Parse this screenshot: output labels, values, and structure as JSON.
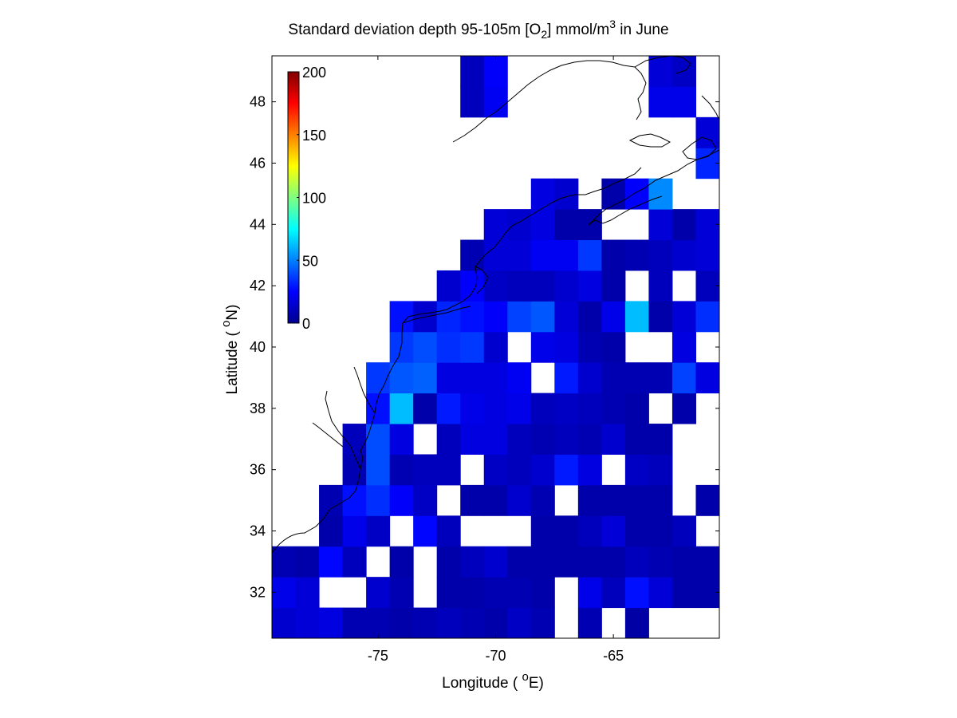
{
  "title": {
    "prefix": "Standard deviation depth 95-105m [O",
    "subscript": "2",
    "middle": "] mmol/m",
    "superscript": "3",
    "suffix": " in June"
  },
  "axes": {
    "xlabel_prefix": "Longitude ( ",
    "xlabel_degree": "o",
    "xlabel_suffix": "E)",
    "ylabel_prefix": "Latitude ( ",
    "ylabel_degree": "o",
    "ylabel_suffix": "N)"
  },
  "chart_data": {
    "type": "heatmap",
    "xlim": [
      -79.5,
      -60.5
    ],
    "ylim": [
      30.5,
      49.5
    ],
    "x_ticks": [
      -75,
      -70,
      -65
    ],
    "x_tick_labels": [
      "-75",
      "-70",
      "-65"
    ],
    "y_ticks": [
      32,
      34,
      36,
      38,
      40,
      42,
      44,
      46,
      48
    ],
    "y_tick_labels": [
      "32",
      "34",
      "36",
      "38",
      "40",
      "42",
      "44",
      "46",
      "48"
    ],
    "cell_size_degrees": 1,
    "colormap": "jet",
    "colorbar": {
      "range": [
        0,
        200
      ],
      "ticks": [
        0,
        50,
        100,
        150,
        200
      ],
      "tick_labels": [
        "0",
        "50",
        "100",
        "150",
        "200"
      ],
      "placement": "upper-left inside axes"
    },
    "grid": false,
    "cells": [
      {
        "lon": -79,
        "lat": 31,
        "v": 14
      },
      {
        "lon": -78,
        "lat": 31,
        "v": 16
      },
      {
        "lon": -77,
        "lat": 31,
        "v": 18
      },
      {
        "lon": -76,
        "lat": 31,
        "v": 8
      },
      {
        "lon": -75,
        "lat": 31,
        "v": 8
      },
      {
        "lon": -74,
        "lat": 31,
        "v": 6
      },
      {
        "lon": -73,
        "lat": 31,
        "v": 8
      },
      {
        "lon": -72,
        "lat": 31,
        "v": 10
      },
      {
        "lon": -71,
        "lat": 31,
        "v": 8
      },
      {
        "lon": -70,
        "lat": 31,
        "v": 6
      },
      {
        "lon": -69,
        "lat": 31,
        "v": 12
      },
      {
        "lon": -68,
        "lat": 31,
        "v": 8
      },
      {
        "lon": -66,
        "lat": 31,
        "v": 8
      },
      {
        "lon": -64,
        "lat": 31,
        "v": 5
      },
      {
        "lon": -79,
        "lat": 32,
        "v": 20
      },
      {
        "lon": -78,
        "lat": 32,
        "v": 16
      },
      {
        "lon": -75,
        "lat": 32,
        "v": 14
      },
      {
        "lon": -74,
        "lat": 32,
        "v": 8
      },
      {
        "lon": -72,
        "lat": 32,
        "v": 6
      },
      {
        "lon": -71,
        "lat": 32,
        "v": 6
      },
      {
        "lon": -70,
        "lat": 32,
        "v": 8
      },
      {
        "lon": -69,
        "lat": 32,
        "v": 8
      },
      {
        "lon": -68,
        "lat": 32,
        "v": 6
      },
      {
        "lon": -66,
        "lat": 32,
        "v": 20
      },
      {
        "lon": -65,
        "lat": 32,
        "v": 10
      },
      {
        "lon": -64,
        "lat": 32,
        "v": 28
      },
      {
        "lon": -63,
        "lat": 32,
        "v": 16
      },
      {
        "lon": -62,
        "lat": 32,
        "v": 6
      },
      {
        "lon": -61,
        "lat": 32,
        "v": 6
      },
      {
        "lon": -79,
        "lat": 33,
        "v": 8
      },
      {
        "lon": -78,
        "lat": 33,
        "v": 6
      },
      {
        "lon": -77,
        "lat": 33,
        "v": 26
      },
      {
        "lon": -76,
        "lat": 33,
        "v": 10
      },
      {
        "lon": -74,
        "lat": 33,
        "v": 6
      },
      {
        "lon": -72,
        "lat": 33,
        "v": 6
      },
      {
        "lon": -71,
        "lat": 33,
        "v": 10
      },
      {
        "lon": -70,
        "lat": 33,
        "v": 14
      },
      {
        "lon": -69,
        "lat": 33,
        "v": 6
      },
      {
        "lon": -68,
        "lat": 33,
        "v": 6
      },
      {
        "lon": -67,
        "lat": 33,
        "v": 6
      },
      {
        "lon": -66,
        "lat": 33,
        "v": 6
      },
      {
        "lon": -65,
        "lat": 33,
        "v": 6
      },
      {
        "lon": -64,
        "lat": 33,
        "v": 10
      },
      {
        "lon": -63,
        "lat": 33,
        "v": 8
      },
      {
        "lon": -62,
        "lat": 33,
        "v": 6
      },
      {
        "lon": -61,
        "lat": 33,
        "v": 6
      },
      {
        "lon": -77,
        "lat": 34,
        "v": 6
      },
      {
        "lon": -76,
        "lat": 34,
        "v": 20
      },
      {
        "lon": -75,
        "lat": 34,
        "v": 12
      },
      {
        "lon": -73,
        "lat": 34,
        "v": 26
      },
      {
        "lon": -72,
        "lat": 34,
        "v": 10
      },
      {
        "lon": -68,
        "lat": 34,
        "v": 6
      },
      {
        "lon": -67,
        "lat": 34,
        "v": 6
      },
      {
        "lon": -66,
        "lat": 34,
        "v": 10
      },
      {
        "lon": -65,
        "lat": 34,
        "v": 16
      },
      {
        "lon": -64,
        "lat": 34,
        "v": 6
      },
      {
        "lon": -63,
        "lat": 34,
        "v": 6
      },
      {
        "lon": -62,
        "lat": 34,
        "v": 10
      },
      {
        "lon": -77,
        "lat": 35,
        "v": 8
      },
      {
        "lon": -76,
        "lat": 35,
        "v": 28
      },
      {
        "lon": -75,
        "lat": 35,
        "v": 34
      },
      {
        "lon": -74,
        "lat": 35,
        "v": 24
      },
      {
        "lon": -73,
        "lat": 35,
        "v": 12
      },
      {
        "lon": -71,
        "lat": 35,
        "v": 6
      },
      {
        "lon": -70,
        "lat": 35,
        "v": 6
      },
      {
        "lon": -69,
        "lat": 35,
        "v": 14
      },
      {
        "lon": -68,
        "lat": 35,
        "v": 8
      },
      {
        "lon": -66,
        "lat": 35,
        "v": 6
      },
      {
        "lon": -65,
        "lat": 35,
        "v": 6
      },
      {
        "lon": -64,
        "lat": 35,
        "v": 6
      },
      {
        "lon": -63,
        "lat": 35,
        "v": 6
      },
      {
        "lon": -61,
        "lat": 35,
        "v": 6
      },
      {
        "lon": -60,
        "lat": 35,
        "v": 6
      },
      {
        "lon": -76,
        "lat": 36,
        "v": 8
      },
      {
        "lon": -75,
        "lat": 36,
        "v": 40
      },
      {
        "lon": -74,
        "lat": 36,
        "v": 8
      },
      {
        "lon": -73,
        "lat": 36,
        "v": 10
      },
      {
        "lon": -72,
        "lat": 36,
        "v": 10
      },
      {
        "lon": -70,
        "lat": 36,
        "v": 12
      },
      {
        "lon": -69,
        "lat": 36,
        "v": 10
      },
      {
        "lon": -68,
        "lat": 36,
        "v": 14
      },
      {
        "lon": -67,
        "lat": 36,
        "v": 30
      },
      {
        "lon": -66,
        "lat": 36,
        "v": 18
      },
      {
        "lon": -64,
        "lat": 36,
        "v": 12
      },
      {
        "lon": -63,
        "lat": 36,
        "v": 10
      },
      {
        "lon": -60,
        "lat": 36,
        "v": 6
      },
      {
        "lon": -76,
        "lat": 37,
        "v": 10
      },
      {
        "lon": -75,
        "lat": 37,
        "v": 40
      },
      {
        "lon": -74,
        "lat": 37,
        "v": 18
      },
      {
        "lon": -72,
        "lat": 37,
        "v": 10
      },
      {
        "lon": -71,
        "lat": 37,
        "v": 18
      },
      {
        "lon": -70,
        "lat": 37,
        "v": 18
      },
      {
        "lon": -69,
        "lat": 37,
        "v": 10
      },
      {
        "lon": -68,
        "lat": 37,
        "v": 8
      },
      {
        "lon": -67,
        "lat": 37,
        "v": 10
      },
      {
        "lon": -66,
        "lat": 37,
        "v": 8
      },
      {
        "lon": -65,
        "lat": 37,
        "v": 14
      },
      {
        "lon": -64,
        "lat": 37,
        "v": 6
      },
      {
        "lon": -63,
        "lat": 37,
        "v": 6
      },
      {
        "lon": -75,
        "lat": 38,
        "v": 28
      },
      {
        "lon": -74,
        "lat": 38,
        "v": 62
      },
      {
        "lon": -73,
        "lat": 38,
        "v": 6
      },
      {
        "lon": -72,
        "lat": 38,
        "v": 30
      },
      {
        "lon": -71,
        "lat": 38,
        "v": 20
      },
      {
        "lon": -70,
        "lat": 38,
        "v": 18
      },
      {
        "lon": -69,
        "lat": 38,
        "v": 20
      },
      {
        "lon": -68,
        "lat": 38,
        "v": 10
      },
      {
        "lon": -67,
        "lat": 38,
        "v": 12
      },
      {
        "lon": -66,
        "lat": 38,
        "v": 10
      },
      {
        "lon": -65,
        "lat": 38,
        "v": 8
      },
      {
        "lon": -64,
        "lat": 38,
        "v": 6
      },
      {
        "lon": -62,
        "lat": 38,
        "v": 6
      },
      {
        "lon": -75,
        "lat": 39,
        "v": 36
      },
      {
        "lon": -74,
        "lat": 39,
        "v": 42
      },
      {
        "lon": -73,
        "lat": 39,
        "v": 44
      },
      {
        "lon": -72,
        "lat": 39,
        "v": 18
      },
      {
        "lon": -71,
        "lat": 39,
        "v": 18
      },
      {
        "lon": -70,
        "lat": 39,
        "v": 18
      },
      {
        "lon": -69,
        "lat": 39,
        "v": 22
      },
      {
        "lon": -67,
        "lat": 39,
        "v": 30
      },
      {
        "lon": -66,
        "lat": 39,
        "v": 14
      },
      {
        "lon": -65,
        "lat": 39,
        "v": 8
      },
      {
        "lon": -64,
        "lat": 39,
        "v": 8
      },
      {
        "lon": -63,
        "lat": 39,
        "v": 8
      },
      {
        "lon": -62,
        "lat": 39,
        "v": 38
      },
      {
        "lon": -61,
        "lat": 39,
        "v": 18
      },
      {
        "lon": -74,
        "lat": 40,
        "v": 36
      },
      {
        "lon": -73,
        "lat": 40,
        "v": 40
      },
      {
        "lon": -72,
        "lat": 40,
        "v": 34
      },
      {
        "lon": -71,
        "lat": 40,
        "v": 36
      },
      {
        "lon": -70,
        "lat": 40,
        "v": 14
      },
      {
        "lon": -68,
        "lat": 40,
        "v": 20
      },
      {
        "lon": -67,
        "lat": 40,
        "v": 18
      },
      {
        "lon": -66,
        "lat": 40,
        "v": 8
      },
      {
        "lon": -65,
        "lat": 40,
        "v": 6
      },
      {
        "lon": -62,
        "lat": 40,
        "v": 18
      },
      {
        "lon": -74,
        "lat": 41,
        "v": 28
      },
      {
        "lon": -73,
        "lat": 41,
        "v": 14
      },
      {
        "lon": -72,
        "lat": 41,
        "v": 32
      },
      {
        "lon": -71,
        "lat": 41,
        "v": 28
      },
      {
        "lon": -70,
        "lat": 41,
        "v": 24
      },
      {
        "lon": -69,
        "lat": 41,
        "v": 38
      },
      {
        "lon": -68,
        "lat": 41,
        "v": 42
      },
      {
        "lon": -67,
        "lat": 41,
        "v": 16
      },
      {
        "lon": -66,
        "lat": 41,
        "v": 6
      },
      {
        "lon": -65,
        "lat": 41,
        "v": 20
      },
      {
        "lon": -64,
        "lat": 41,
        "v": 62
      },
      {
        "lon": -63,
        "lat": 41,
        "v": 6
      },
      {
        "lon": -62,
        "lat": 41,
        "v": 16
      },
      {
        "lon": -61,
        "lat": 41,
        "v": 34
      },
      {
        "lon": -72,
        "lat": 42,
        "v": 14
      },
      {
        "lon": -71,
        "lat": 42,
        "v": 24
      },
      {
        "lon": -70,
        "lat": 42,
        "v": 12
      },
      {
        "lon": -69,
        "lat": 42,
        "v": 10
      },
      {
        "lon": -68,
        "lat": 42,
        "v": 10
      },
      {
        "lon": -67,
        "lat": 42,
        "v": 14
      },
      {
        "lon": -66,
        "lat": 42,
        "v": 18
      },
      {
        "lon": -65,
        "lat": 42,
        "v": 6
      },
      {
        "lon": -63,
        "lat": 42,
        "v": 10
      },
      {
        "lon": -61,
        "lat": 42,
        "v": 10
      },
      {
        "lon": -71,
        "lat": 43,
        "v": 8
      },
      {
        "lon": -70,
        "lat": 43,
        "v": 16
      },
      {
        "lon": -69,
        "lat": 43,
        "v": 16
      },
      {
        "lon": -68,
        "lat": 43,
        "v": 22
      },
      {
        "lon": -67,
        "lat": 43,
        "v": 22
      },
      {
        "lon": -66,
        "lat": 43,
        "v": 36
      },
      {
        "lon": -65,
        "lat": 43,
        "v": 6
      },
      {
        "lon": -64,
        "lat": 43,
        "v": 8
      },
      {
        "lon": -63,
        "lat": 43,
        "v": 10
      },
      {
        "lon": -62,
        "lat": 43,
        "v": 14
      },
      {
        "lon": -61,
        "lat": 43,
        "v": 16
      },
      {
        "lon": -70,
        "lat": 44,
        "v": 16
      },
      {
        "lon": -69,
        "lat": 44,
        "v": 14
      },
      {
        "lon": -68,
        "lat": 44,
        "v": 18
      },
      {
        "lon": -67,
        "lat": 44,
        "v": 6
      },
      {
        "lon": -66,
        "lat": 44,
        "v": 6
      },
      {
        "lon": -63,
        "lat": 44,
        "v": 16
      },
      {
        "lon": -62,
        "lat": 44,
        "v": 6
      },
      {
        "lon": -61,
        "lat": 44,
        "v": 16
      },
      {
        "lon": -68,
        "lat": 45,
        "v": 18
      },
      {
        "lon": -67,
        "lat": 45,
        "v": 14
      },
      {
        "lon": -65,
        "lat": 45,
        "v": 6
      },
      {
        "lon": -64,
        "lat": 45,
        "v": 24
      },
      {
        "lon": -63,
        "lat": 45,
        "v": 52
      },
      {
        "lon": -61,
        "lat": 46,
        "v": 32
      },
      {
        "lon": -61,
        "lat": 47,
        "v": 16
      },
      {
        "lon": -71,
        "lat": 48,
        "v": 10
      },
      {
        "lon": -70,
        "lat": 48,
        "v": 22
      },
      {
        "lon": -63,
        "lat": 48,
        "v": 20
      },
      {
        "lon": -62,
        "lat": 48,
        "v": 20
      },
      {
        "lon": -71,
        "lat": 49,
        "v": 10
      },
      {
        "lon": -70,
        "lat": 49,
        "v": 24
      },
      {
        "lon": -63,
        "lat": 49,
        "v": 16
      },
      {
        "lon": -62,
        "lat": 49,
        "v": 12
      }
    ]
  },
  "colors": {
    "axes": "#000000",
    "background": "#ffffff",
    "coastline": "#000000"
  }
}
